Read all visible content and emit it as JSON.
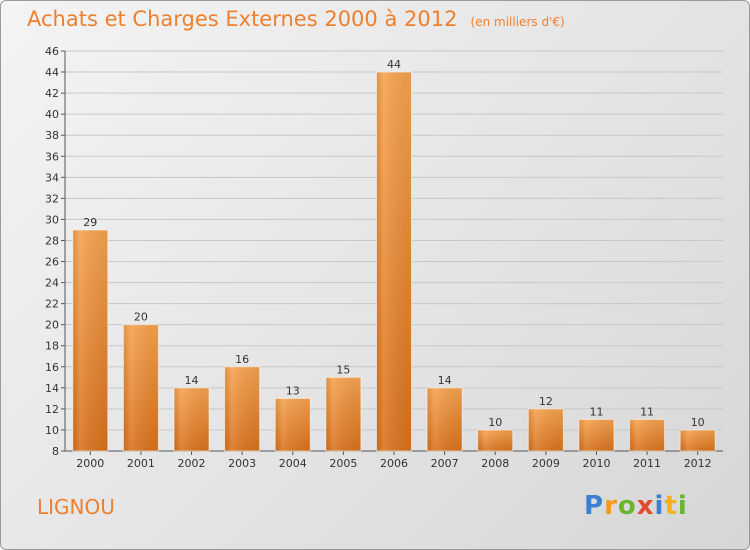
{
  "chart_data": {
    "type": "bar",
    "title": "Achats et Charges Externes 2000 à 2012",
    "subtitle": "(en milliers d'€)",
    "categories": [
      "2000",
      "2001",
      "2002",
      "2003",
      "2004",
      "2005",
      "2006",
      "2007",
      "2008",
      "2009",
      "2010",
      "2011",
      "2012"
    ],
    "values": [
      29,
      20,
      14,
      16,
      13,
      15,
      44,
      14,
      10,
      12,
      11,
      11,
      10
    ],
    "ylim": [
      8,
      46
    ],
    "yticks": [
      8,
      10,
      12,
      14,
      16,
      18,
      20,
      22,
      24,
      26,
      28,
      30,
      32,
      34,
      36,
      38,
      40,
      42,
      44,
      46
    ],
    "grid": true,
    "bar_color": "#ee8a34"
  },
  "place": "LIGNOU",
  "logo": {
    "p": "P",
    "r": "r",
    "o": "o",
    "x": "x",
    "i": "i",
    "t": "t",
    "i2": "i"
  }
}
